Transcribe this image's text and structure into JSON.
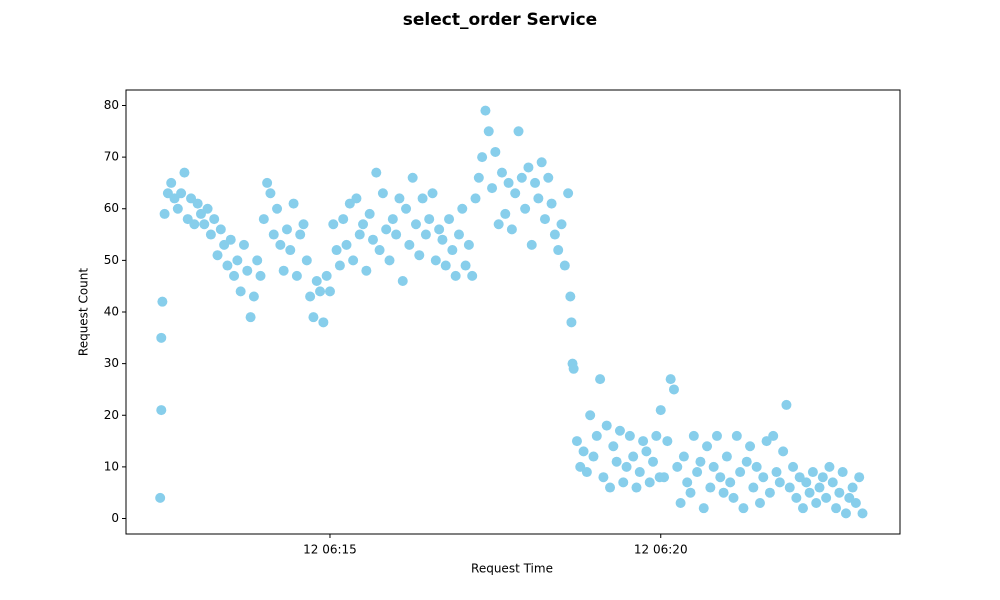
{
  "chart_data": {
    "type": "scatter",
    "title": "select_order Service",
    "x_label": "Request Time",
    "y_label": "Request Count",
    "color": "#87ceeb",
    "xlim": [
      "12 06:11:55",
      "12 06:23:37"
    ],
    "xticks": [
      {
        "value": "12 06:15:00",
        "label": "12 06:15"
      },
      {
        "value": "12 06:20:00",
        "label": "12 06:20"
      }
    ],
    "ylim": [
      -3,
      83
    ],
    "yticks": [
      0,
      10,
      20,
      30,
      40,
      50,
      60,
      70,
      80
    ],
    "x": [
      "12 06:12:26",
      "12 06:12:27",
      "12 06:12:27",
      "12 06:12:28",
      "12 06:12:30",
      "12 06:12:33",
      "12 06:12:36",
      "12 06:12:39",
      "12 06:12:42",
      "12 06:12:45",
      "12 06:12:48",
      "12 06:12:51",
      "12 06:12:54",
      "12 06:12:57",
      "12 06:13:00",
      "12 06:13:03",
      "12 06:13:06",
      "12 06:13:09",
      "12 06:13:12",
      "12 06:13:15",
      "12 06:13:18",
      "12 06:13:21",
      "12 06:13:24",
      "12 06:13:27",
      "12 06:13:30",
      "12 06:13:33",
      "12 06:13:36",
      "12 06:13:39",
      "12 06:13:42",
      "12 06:13:45",
      "12 06:13:48",
      "12 06:13:51",
      "12 06:13:54",
      "12 06:13:57",
      "12 06:14:00",
      "12 06:14:03",
      "12 06:14:06",
      "12 06:14:09",
      "12 06:14:12",
      "12 06:14:15",
      "12 06:14:18",
      "12 06:14:21",
      "12 06:14:24",
      "12 06:14:27",
      "12 06:14:30",
      "12 06:14:33",
      "12 06:14:36",
      "12 06:14:39",
      "12 06:14:42",
      "12 06:14:45",
      "12 06:14:48",
      "12 06:14:51",
      "12 06:14:54",
      "12 06:14:57",
      "12 06:15:00",
      "12 06:15:03",
      "12 06:15:06",
      "12 06:15:09",
      "12 06:15:12",
      "12 06:15:15",
      "12 06:15:18",
      "12 06:15:21",
      "12 06:15:24",
      "12 06:15:27",
      "12 06:15:30",
      "12 06:15:33",
      "12 06:15:36",
      "12 06:15:39",
      "12 06:15:42",
      "12 06:15:45",
      "12 06:15:48",
      "12 06:15:51",
      "12 06:15:54",
      "12 06:15:57",
      "12 06:16:00",
      "12 06:16:03",
      "12 06:16:06",
      "12 06:16:09",
      "12 06:16:12",
      "12 06:16:15",
      "12 06:16:18",
      "12 06:16:21",
      "12 06:16:24",
      "12 06:16:27",
      "12 06:16:30",
      "12 06:16:33",
      "12 06:16:36",
      "12 06:16:39",
      "12 06:16:42",
      "12 06:16:45",
      "12 06:16:48",
      "12 06:16:51",
      "12 06:16:54",
      "12 06:16:57",
      "12 06:17:00",
      "12 06:17:03",
      "12 06:17:06",
      "12 06:17:09",
      "12 06:17:12",
      "12 06:17:15",
      "12 06:17:18",
      "12 06:17:21",
      "12 06:17:24",
      "12 06:17:27",
      "12 06:17:30",
      "12 06:17:33",
      "12 06:17:36",
      "12 06:17:39",
      "12 06:17:42",
      "12 06:17:45",
      "12 06:17:48",
      "12 06:17:51",
      "12 06:17:54",
      "12 06:17:57",
      "12 06:18:00",
      "12 06:18:03",
      "12 06:18:06",
      "12 06:18:09",
      "12 06:18:12",
      "12 06:18:15",
      "12 06:18:18",
      "12 06:18:21",
      "12 06:18:24",
      "12 06:18:27",
      "12 06:18:30",
      "12 06:18:33",
      "12 06:18:36",
      "12 06:18:38",
      "12 06:18:39",
      "12 06:18:40",
      "12 06:18:41",
      "12 06:18:44",
      "12 06:18:47",
      "12 06:18:50",
      "12 06:18:53",
      "12 06:18:56",
      "12 06:18:59",
      "12 06:19:02",
      "12 06:19:05",
      "12 06:19:08",
      "12 06:19:11",
      "12 06:19:14",
      "12 06:19:17",
      "12 06:19:20",
      "12 06:19:23",
      "12 06:19:26",
      "12 06:19:29",
      "12 06:19:32",
      "12 06:19:35",
      "12 06:19:38",
      "12 06:19:41",
      "12 06:19:44",
      "12 06:19:47",
      "12 06:19:50",
      "12 06:19:53",
      "12 06:19:56",
      "12 06:19:59",
      "12 06:20:00",
      "12 06:20:03",
      "12 06:20:06",
      "12 06:20:09",
      "12 06:20:12",
      "12 06:20:15",
      "12 06:20:18",
      "12 06:20:21",
      "12 06:20:24",
      "12 06:20:27",
      "12 06:20:30",
      "12 06:20:33",
      "12 06:20:36",
      "12 06:20:39",
      "12 06:20:42",
      "12 06:20:45",
      "12 06:20:48",
      "12 06:20:51",
      "12 06:20:54",
      "12 06:20:57",
      "12 06:21:00",
      "12 06:21:03",
      "12 06:21:06",
      "12 06:21:09",
      "12 06:21:12",
      "12 06:21:15",
      "12 06:21:18",
      "12 06:21:21",
      "12 06:21:24",
      "12 06:21:27",
      "12 06:21:30",
      "12 06:21:33",
      "12 06:21:36",
      "12 06:21:39",
      "12 06:21:42",
      "12 06:21:45",
      "12 06:21:48",
      "12 06:21:51",
      "12 06:21:54",
      "12 06:21:57",
      "12 06:22:00",
      "12 06:22:03",
      "12 06:22:06",
      "12 06:22:09",
      "12 06:22:12",
      "12 06:22:15",
      "12 06:22:18",
      "12 06:22:21",
      "12 06:22:24",
      "12 06:22:27",
      "12 06:22:30",
      "12 06:22:33",
      "12 06:22:36",
      "12 06:22:39",
      "12 06:22:42",
      "12 06:22:45",
      "12 06:22:48",
      "12 06:22:51",
      "12 06:22:54",
      "12 06:22:57",
      "12 06:23:00",
      "12 06:23:03"
    ],
    "values": [
      4,
      21,
      35,
      42,
      59,
      63,
      65,
      62,
      60,
      63,
      67,
      58,
      62,
      57,
      61,
      59,
      57,
      60,
      55,
      58,
      51,
      56,
      53,
      49,
      54,
      47,
      50,
      44,
      53,
      48,
      39,
      43,
      50,
      47,
      58,
      65,
      63,
      55,
      60,
      53,
      48,
      56,
      52,
      61,
      47,
      55,
      57,
      50,
      43,
      39,
      46,
      44,
      38,
      47,
      44,
      57,
      52,
      49,
      58,
      53,
      61,
      50,
      62,
      55,
      57,
      48,
      59,
      54,
      67,
      52,
      63,
      56,
      50,
      58,
      55,
      62,
      46,
      60,
      53,
      66,
      57,
      51,
      62,
      55,
      58,
      63,
      50,
      56,
      54,
      49,
      58,
      52,
      47,
      55,
      60,
      49,
      53,
      47,
      62,
      66,
      70,
      79,
      75,
      64,
      71,
      57,
      67,
      59,
      65,
      56,
      63,
      75,
      66,
      60,
      68,
      53,
      65,
      62,
      69,
      58,
      66,
      61,
      55,
      52,
      57,
      49,
      63,
      43,
      38,
      30,
      29,
      15,
      10,
      13,
      9,
      20,
      12,
      16,
      27,
      8,
      18,
      6,
      14,
      11,
      17,
      7,
      10,
      16,
      12,
      6,
      9,
      15,
      13,
      7,
      11,
      16,
      8,
      21,
      8,
      15,
      27,
      25,
      10,
      3,
      12,
      7,
      5,
      16,
      9,
      11,
      2,
      14,
      6,
      10,
      16,
      8,
      5,
      12,
      7,
      4,
      16,
      9,
      2,
      11,
      14,
      6,
      10,
      3,
      8,
      15,
      5,
      16,
      9,
      7,
      13,
      22,
      6,
      10,
      4,
      8,
      2,
      7,
      5,
      9,
      3,
      6,
      8,
      4,
      10,
      7,
      2,
      5,
      9,
      1,
      4,
      6,
      3,
      8,
      1
    ]
  }
}
